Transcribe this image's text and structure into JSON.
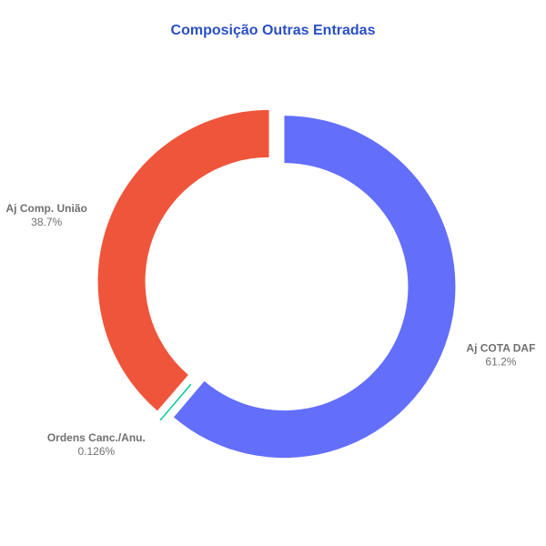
{
  "chart_data": {
    "type": "pie",
    "subtype": "donut",
    "title": "Composição Outras Entradas",
    "colors": {
      "title": "#2a4fc4",
      "label": "#707070"
    },
    "slices": [
      {
        "label": "Aj COTA DAF",
        "value": 61.2,
        "percent_label": "61.2%",
        "color": "#636efa"
      },
      {
        "label": "Ordens Canc./Anu.",
        "value": 0.126,
        "percent_label": "0.126%",
        "color": "#00cc96"
      },
      {
        "label": "Aj Comp. União",
        "value": 38.7,
        "percent_label": "38.7%",
        "color": "#ef553b"
      }
    ],
    "start_angle": "top",
    "direction": "clockwise",
    "pulled_out": true
  }
}
